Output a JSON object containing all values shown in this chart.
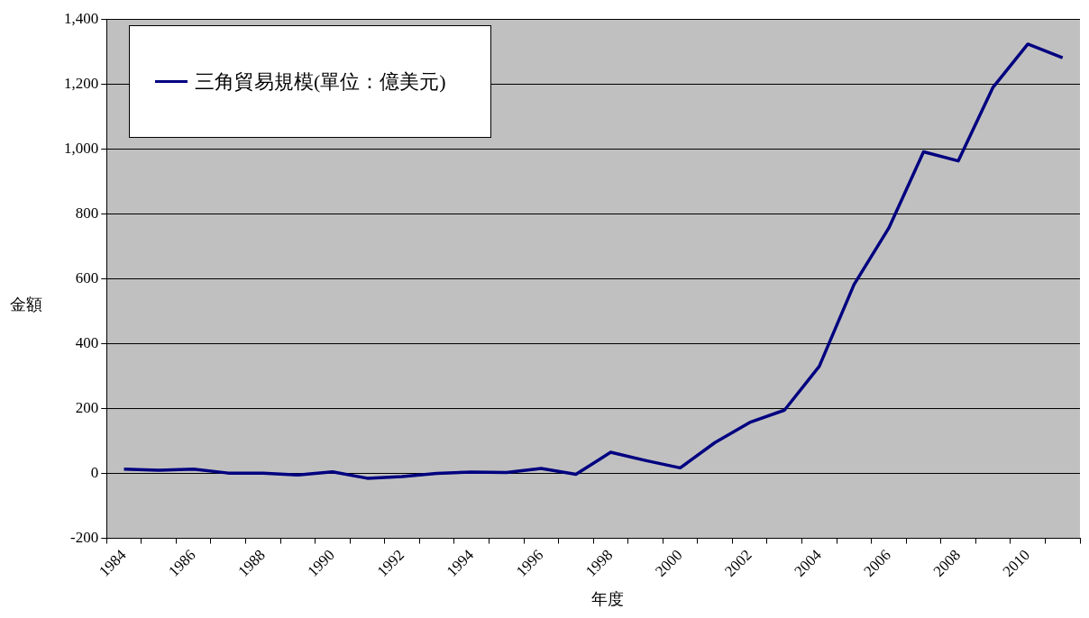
{
  "chart_data": {
    "type": "line",
    "xlabel": "年度",
    "ylabel": "金額",
    "categories": [
      "1984",
      null,
      "1986",
      null,
      "1988",
      null,
      "1990",
      null,
      "1992",
      null,
      "1994",
      null,
      "1996",
      null,
      "1998",
      null,
      "2000",
      null,
      "2002",
      null,
      "2004",
      null,
      "2006",
      null,
      "2008",
      null,
      "2010",
      null
    ],
    "series": [
      {
        "name": "三角貿易規模(單位：億美元)",
        "color": "#000080",
        "values": [
          13,
          10,
          13,
          1,
          1,
          -5,
          5,
          -15,
          -10,
          0,
          4,
          3,
          15,
          -3,
          65,
          40,
          17,
          95,
          157,
          195,
          330,
          582,
          756,
          991,
          963,
          1190,
          1323,
          1281
        ]
      }
    ],
    "ylim": [
      -200,
      1400
    ],
    "yticks": [
      {
        "value": -200,
        "label": "-200"
      },
      0,
      200,
      400,
      600,
      800,
      {
        "value": 1000,
        "label": "1,000"
      },
      {
        "value": 1200,
        "label": "1,200"
      },
      {
        "value": 1400,
        "label": "1,400"
      }
    ],
    "grid": "y",
    "legend": "top left"
  }
}
